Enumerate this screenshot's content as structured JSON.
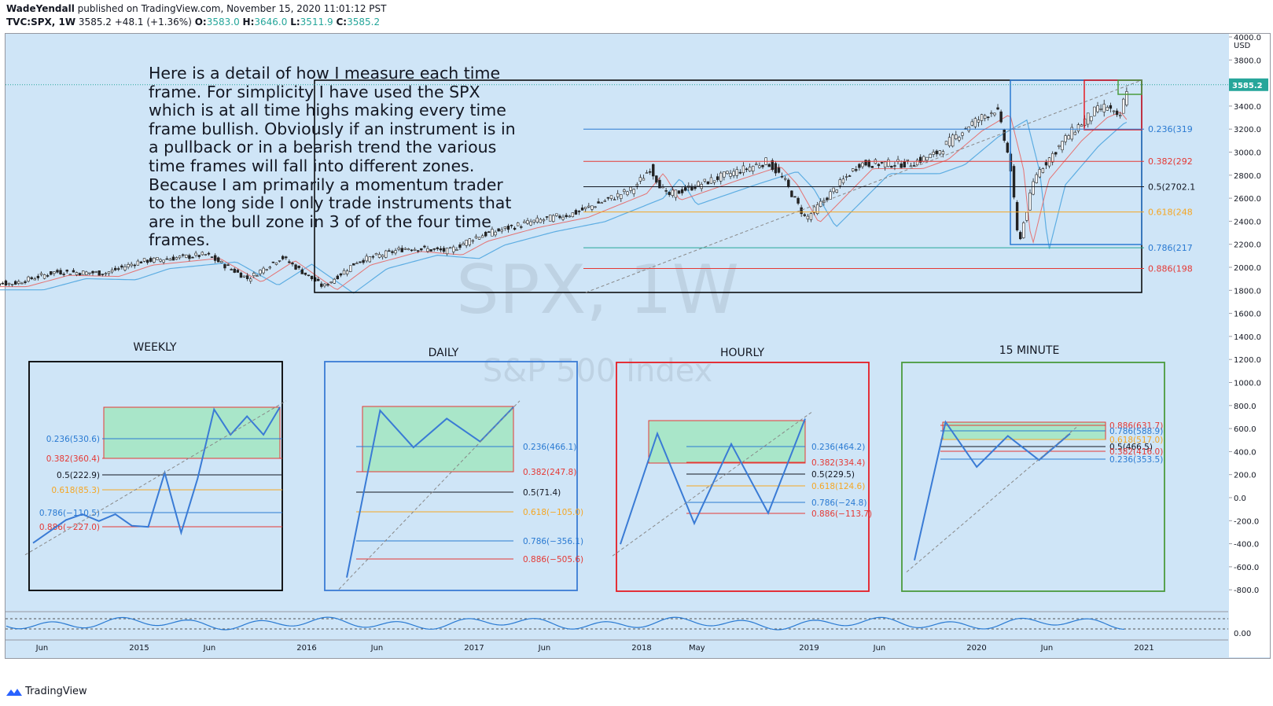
{
  "header": {
    "author": "WadeYendall",
    "published": "published on TradingView.com, November 15, 2020 11:01:12 PST",
    "symbol": "TVC:SPX, 1W",
    "last": "3585.2",
    "change": "+48.1 (+1.36%)",
    "o_label": "O:",
    "o": "3583.0",
    "h_label": "H:",
    "h": "3646.0",
    "l_label": "L:",
    "l": "3511.9",
    "c_label": "C:",
    "c": "3585.2"
  },
  "watermark": {
    "symbol": "SPX, 1W",
    "name": "S&P 500 Index"
  },
  "note": "Here is a detail of how I  measure each time frame. For simplicity I have used the SPX which is at all time highs making every time frame bullish. Obviously if an instrument is in a pullback or in a bearish trend the various time frames will fall into different zones. Because I am primarily a momentum trader to the long side I only trade instruments that are in the bull zone in 3 of of the four time frames.",
  "footer": {
    "brand": "TradingView"
  },
  "colors": {
    "bg": "#cfe5f7",
    "up": "#26a69a",
    "down": "#ef5350",
    "fib_blue": "#2a7ad2",
    "fib_red": "#e53935",
    "fib_orange": "#f5a623",
    "zone": "#a9e6c9",
    "weekly_border": "#000000",
    "daily_border": "#3a7bd5",
    "hourly_border": "#e51c23",
    "min15_border": "#4a9b3d"
  },
  "chart_data": [
    {
      "type": "candlestick",
      "title": "SPX, 1W",
      "currency": "USD",
      "last_price_label": "3585.2",
      "y_ticks": [
        "4000.0",
        "3800.0",
        "3600.0",
        "3400.0",
        "3200.0",
        "3000.0",
        "2800.0",
        "2600.0",
        "2400.0",
        "2200.0",
        "2000.0",
        "1800.0",
        "1600.0",
        "1400.0",
        "1200.0",
        "1000.0",
        "800.0",
        "600.0",
        "400.0",
        "200.0",
        "0.0",
        "-200.0",
        "-400.0",
        "-600.0",
        "-800.0"
      ],
      "x_ticks": [
        "Jun",
        "2015",
        "Jun",
        "2016",
        "Jun",
        "2017",
        "Jun",
        "2018",
        "May",
        "2019",
        "Jun",
        "2020",
        "Jun",
        "2021"
      ],
      "close_path": [
        [
          2014.25,
          1860
        ],
        [
          2014.5,
          1960
        ],
        [
          2014.8,
          1950
        ],
        [
          2015.0,
          2050
        ],
        [
          2015.4,
          2110
        ],
        [
          2015.65,
          1900
        ],
        [
          2015.85,
          2090
        ],
        [
          2016.1,
          1830
        ],
        [
          2016.3,
          2050
        ],
        [
          2016.6,
          2170
        ],
        [
          2016.85,
          2140
        ],
        [
          2017.0,
          2260
        ],
        [
          2017.3,
          2380
        ],
        [
          2017.6,
          2470
        ],
        [
          2017.95,
          2680
        ],
        [
          2018.05,
          2860
        ],
        [
          2018.15,
          2620
        ],
        [
          2018.5,
          2800
        ],
        [
          2018.75,
          2920
        ],
        [
          2018.85,
          2760
        ],
        [
          2018.98,
          2420
        ],
        [
          2019.3,
          2900
        ],
        [
          2019.6,
          2900
        ],
        [
          2019.75,
          2980
        ],
        [
          2019.95,
          3230
        ],
        [
          2020.12,
          3380
        ],
        [
          2020.2,
          2900
        ],
        [
          2020.25,
          2200
        ],
        [
          2020.35,
          2800
        ],
        [
          2020.55,
          3150
        ],
        [
          2020.7,
          3350
        ],
        [
          2020.78,
          3400
        ],
        [
          2020.85,
          3270
        ],
        [
          2020.9,
          3580
        ]
      ],
      "fib_levels": [
        {
          "label": "0.236(319",
          "price": 3200
        },
        {
          "label": "0.382(292",
          "price": 2920
        },
        {
          "label": "0.5(2702.1",
          "price": 2700
        },
        {
          "label": "0.618(248",
          "price": 2480
        },
        {
          "label": "0.786(217",
          "price": 2170
        },
        {
          "label": "0.886(198",
          "price": 1990
        }
      ],
      "oscillator_label": "0.00"
    },
    {
      "type": "line",
      "title": "WEEKLY",
      "fib_levels": [
        {
          "label": "0.236(530.6)",
          "price": 530.6
        },
        {
          "label": "0.382(360.4)",
          "price": 360.4
        },
        {
          "label": "0.5(222.9)",
          "price": 222.9
        },
        {
          "label": "0.618(85.3)",
          "price": 85.3
        },
        {
          "label": "0.786(−110.5)",
          "price": -110.5
        },
        {
          "label": "0.886(−227.0)",
          "price": -227.0
        }
      ],
      "zone": [
        360.4,
        800
      ],
      "path": [
        [
          0,
          -380
        ],
        [
          1,
          -280
        ],
        [
          2,
          -180
        ],
        [
          3,
          -130
        ],
        [
          4,
          -190
        ],
        [
          5,
          -130
        ],
        [
          6,
          -230
        ],
        [
          7,
          -240
        ],
        [
          8,
          230
        ],
        [
          9,
          -290
        ],
        [
          10,
          180
        ],
        [
          11,
          780
        ],
        [
          12,
          560
        ],
        [
          13,
          720
        ],
        [
          14,
          560
        ],
        [
          15,
          800
        ]
      ]
    },
    {
      "type": "line",
      "title": "DAILY",
      "fib_levels": [
        {
          "label": "0.236(466.1)",
          "price": 466.1
        },
        {
          "label": "0.382(247.8)",
          "price": 247.8
        },
        {
          "label": "0.5(71.4)",
          "price": 71.4
        },
        {
          "label": "0.618(−105.0)",
          "price": -105.0
        },
        {
          "label": "0.786(−356.1)",
          "price": -356.1
        },
        {
          "label": "0.886(−505.6)",
          "price": -505.6
        }
      ],
      "zone": [
        247.8,
        800
      ],
      "path": [
        [
          0,
          -680
        ],
        [
          1,
          770
        ],
        [
          2,
          450
        ],
        [
          3,
          700
        ],
        [
          4,
          500
        ],
        [
          5,
          800
        ]
      ]
    },
    {
      "type": "line",
      "title": "HOURLY",
      "fib_levels": [
        {
          "label": "0.236(464.2)",
          "price": 464.2
        },
        {
          "label": "0.382(334.4)",
          "price": 334.4
        },
        {
          "label": "0.5(229.5)",
          "price": 229.5
        },
        {
          "label": "0.618(124.6)",
          "price": 124.6
        },
        {
          "label": "0.786(−24.8)",
          "price": -24.8
        },
        {
          "label": "0.886(−113.7)",
          "price": -113.7
        }
      ],
      "zone": [
        334.4,
        700
      ],
      "path": [
        [
          0,
          -390
        ],
        [
          1,
          570
        ],
        [
          2,
          -210
        ],
        [
          3,
          480
        ],
        [
          4,
          -120
        ],
        [
          5,
          700
        ]
      ]
    },
    {
      "type": "line",
      "title": "15 MINUTE",
      "fib_levels": [
        {
          "label": "0.886(631.7)",
          "price": 631.7
        },
        {
          "label": "0.786(588.9)",
          "price": 588.9
        },
        {
          "label": "0.618(517.0)",
          "price": 517.0
        },
        {
          "label": "0.5(466.5)",
          "price": 466.5
        },
        {
          "label": "0.382(416.0)",
          "price": 416.0
        },
        {
          "label": "0.236(353.5)",
          "price": 353.5
        }
      ],
      "zone": [
        517.0,
        680
      ],
      "path": [
        [
          0,
          -530
        ],
        [
          1,
          670
        ],
        [
          2,
          280
        ],
        [
          3,
          550
        ],
        [
          4,
          340
        ],
        [
          5,
          570
        ]
      ]
    }
  ]
}
